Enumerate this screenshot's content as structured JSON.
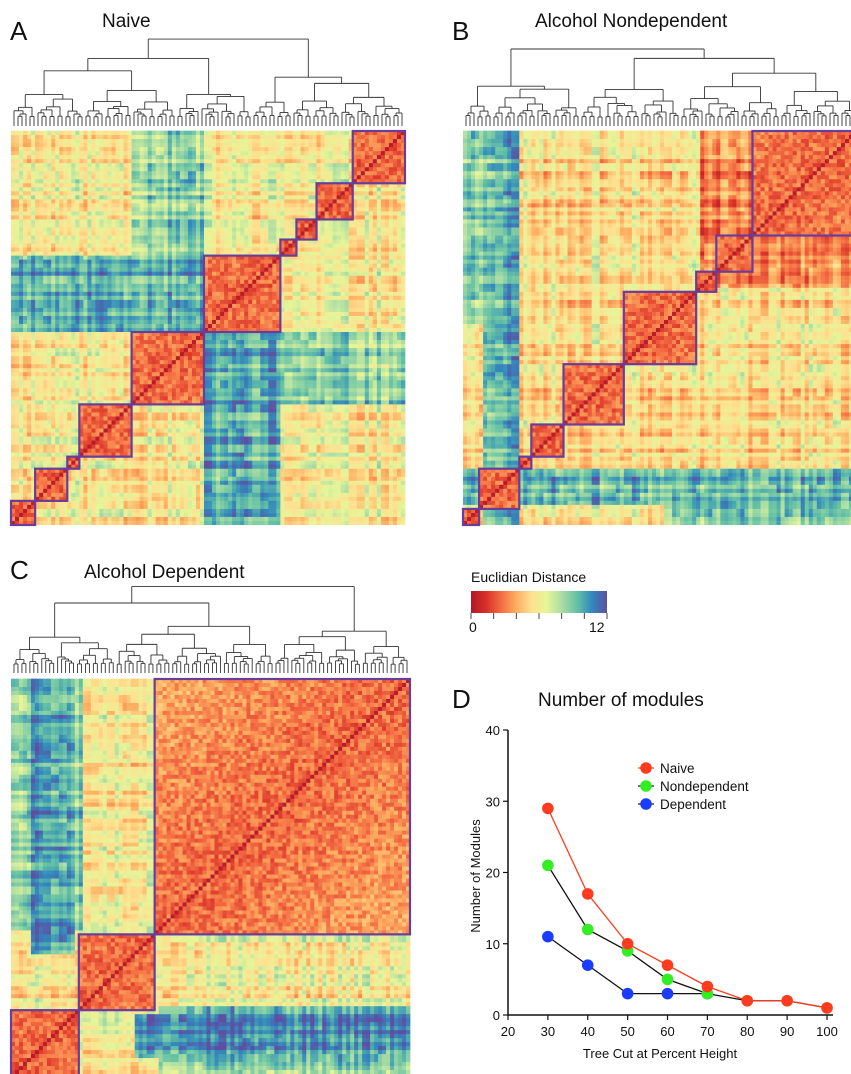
{
  "panels": [
    {
      "id": "A",
      "letter": "A",
      "title": "Naive"
    },
    {
      "id": "B",
      "letter": "B",
      "title": "Alcohol Nondependent"
    },
    {
      "id": "C",
      "letter": "C",
      "title": "Alcohol Dependent"
    }
  ],
  "colorbar": {
    "title": "Euclidian Distance",
    "min_label": "0",
    "max_label": "12",
    "colors": [
      "#b2182b",
      "#d73027",
      "#f46d43",
      "#fdae61",
      "#fee090",
      "#e6f598",
      "#abdda4",
      "#66c2a5",
      "#3288bd",
      "#5e4fa2"
    ]
  },
  "module_box_color": "#6a3d9a",
  "chart_data": {
    "type": "line",
    "panel_letter": "D",
    "title": "Number of modules",
    "xlabel": "Tree Cut at Percent Height",
    "ylabel": "Number of Modules",
    "xlim": [
      20,
      100
    ],
    "ylim": [
      0,
      40
    ],
    "xticks": [
      20,
      30,
      40,
      50,
      60,
      70,
      80,
      90,
      100
    ],
    "yticks": [
      0,
      10,
      20,
      30,
      40
    ],
    "x": [
      30,
      40,
      50,
      60,
      70,
      80,
      90,
      100
    ],
    "legend_position": "top-right",
    "series": [
      {
        "name": "Naive",
        "color": "#ff3b1f",
        "line_color": "#ff3b1f",
        "values": [
          29,
          17,
          10,
          7,
          4,
          2,
          2,
          1
        ]
      },
      {
        "name": "Nondependent",
        "color": "#33ee22",
        "line_color": "#111111",
        "values": [
          21,
          12,
          9,
          5,
          3,
          2,
          2,
          1
        ]
      },
      {
        "name": "Dependent",
        "color": "#1a3cff",
        "line_color": "#111111",
        "values": [
          11,
          7,
          3,
          3,
          3,
          null,
          null,
          null
        ]
      }
    ]
  }
}
